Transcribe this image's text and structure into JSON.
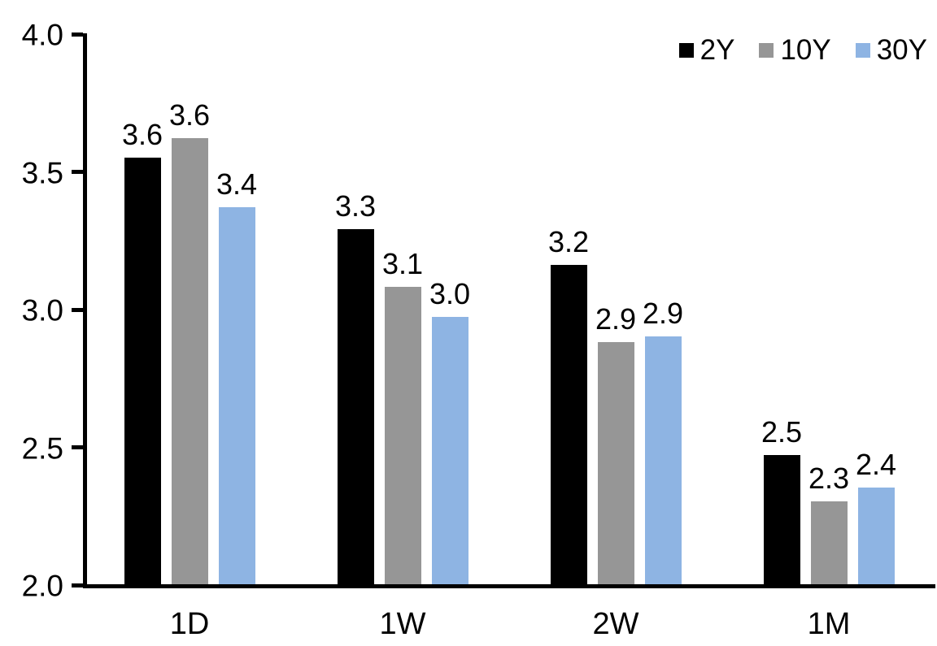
{
  "chart_data": {
    "type": "bar",
    "title": "",
    "xlabel": "",
    "ylabel": "",
    "categories": [
      "1D",
      "1W",
      "2W",
      "1M"
    ],
    "series": [
      {
        "name": "2Y",
        "color": "#000000",
        "values": [
          3.55,
          3.29,
          3.16,
          2.47
        ],
        "labels": [
          "3.6",
          "3.3",
          "3.2",
          "2.5"
        ]
      },
      {
        "name": "10Y",
        "color": "#969696",
        "values": [
          3.62,
          3.08,
          2.88,
          2.3
        ],
        "labels": [
          "3.6",
          "3.1",
          "2.9",
          "2.3"
        ]
      },
      {
        "name": "30Y",
        "color": "#8EB4E3",
        "values": [
          3.37,
          2.97,
          2.9,
          2.35
        ],
        "labels": [
          "3.4",
          "3.0",
          "2.9",
          "2.4"
        ]
      }
    ],
    "ylim": [
      2.0,
      4.0
    ],
    "ytick_step": 0.5,
    "ytick_labels": [
      "2.0",
      "2.5",
      "3.0",
      "3.5",
      "4.0"
    ],
    "grid": false,
    "legend_position": "top-right",
    "axis_color": "#000000",
    "background_color": "#ffffff"
  }
}
